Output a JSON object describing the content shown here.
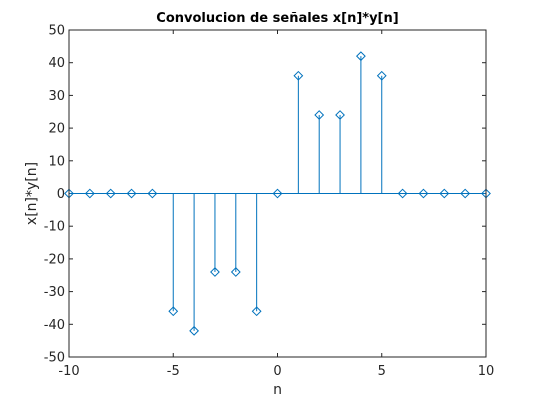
{
  "chart_data": {
    "type": "stem",
    "title": "Convolucion de señales x[n]*y[n]",
    "xlabel": "n",
    "ylabel": "x[n]*y[n]",
    "xlim": [
      -10,
      10
    ],
    "ylim": [
      -50,
      50
    ],
    "xticks": [
      -10,
      -5,
      0,
      5,
      10
    ],
    "yticks": [
      -50,
      -40,
      -30,
      -20,
      -10,
      0,
      10,
      20,
      30,
      40,
      50
    ],
    "grid": false,
    "x": [
      -10,
      -9,
      -8,
      -7,
      -6,
      -5,
      -4,
      -3,
      -2,
      -1,
      0,
      1,
      2,
      3,
      4,
      5,
      6,
      7,
      8,
      9,
      10
    ],
    "values": [
      0,
      0,
      0,
      0,
      0,
      -36,
      -42,
      -24,
      -24,
      -36,
      0,
      36,
      24,
      24,
      42,
      36,
      0,
      0,
      0,
      0,
      0
    ],
    "marker": "diamond",
    "color": "#0072bd"
  }
}
